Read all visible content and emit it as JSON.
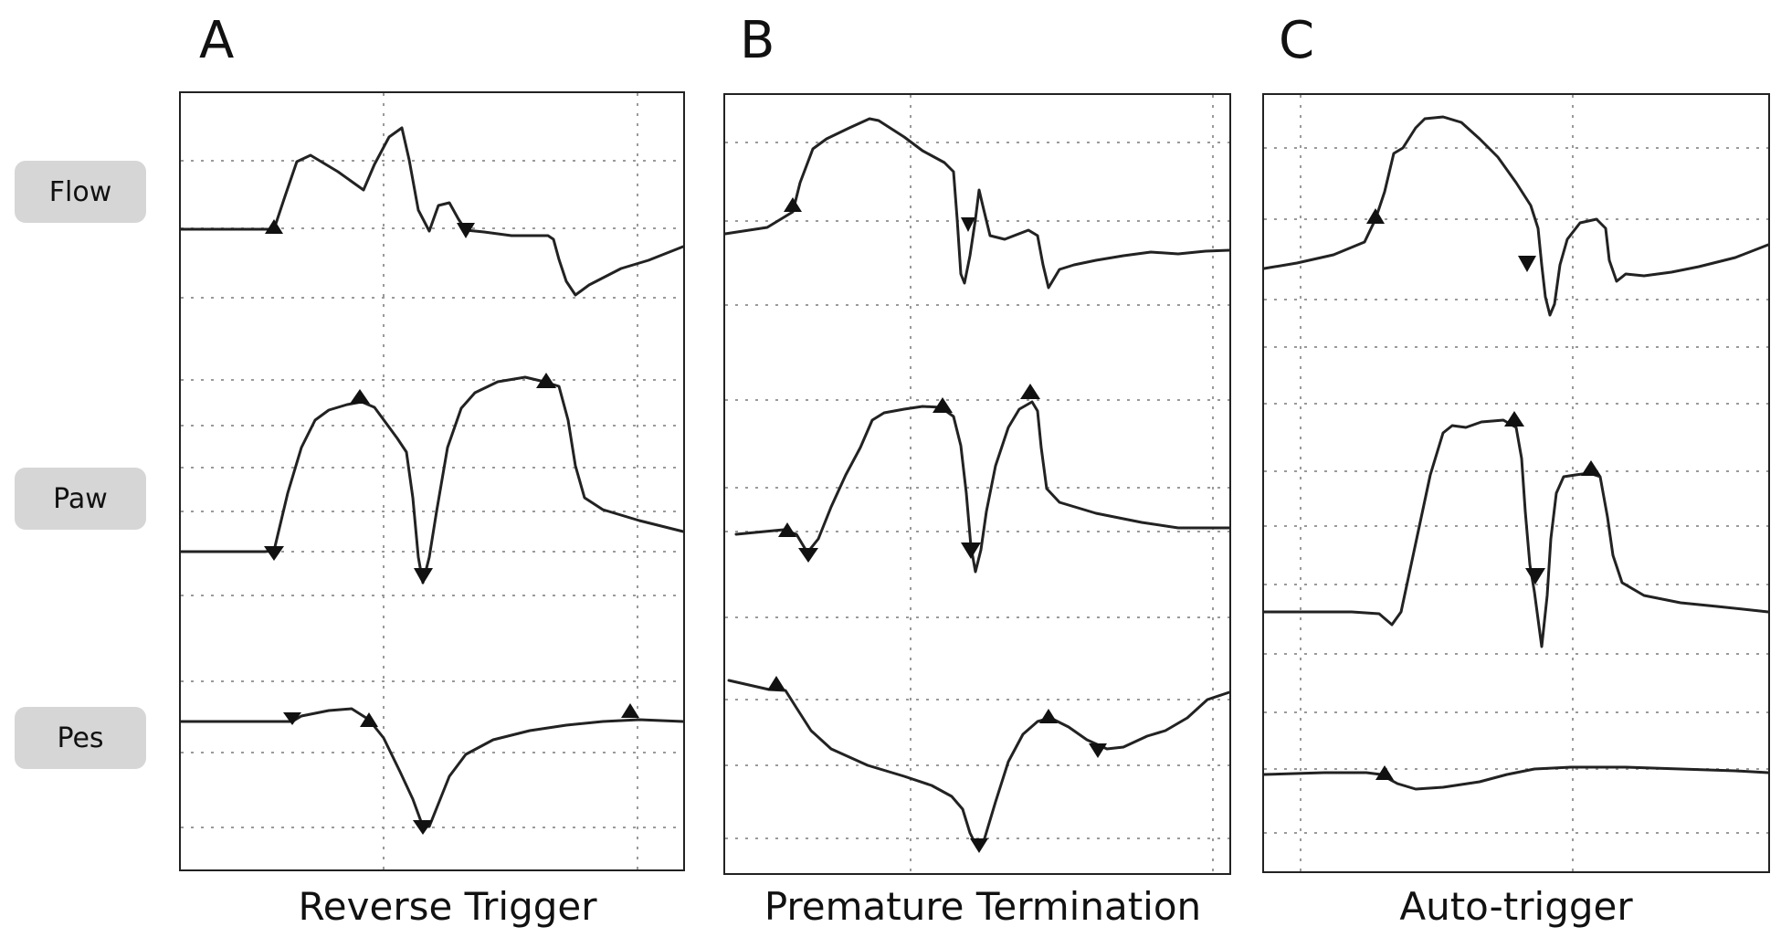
{
  "signal_labels": {
    "flow": "Flow",
    "paw": "Paw",
    "pes": "Pes"
  },
  "panels": {
    "a": {
      "letter": "A",
      "caption": "Reverse Trigger"
    },
    "b": {
      "letter": "B",
      "caption": "Premature Termination"
    },
    "c": {
      "letter": "C",
      "caption": "Auto-trigger"
    }
  },
  "colors": {
    "trace": "#222222",
    "grid": "#9a9a9a",
    "label_bg": "#d6d6d6"
  }
}
